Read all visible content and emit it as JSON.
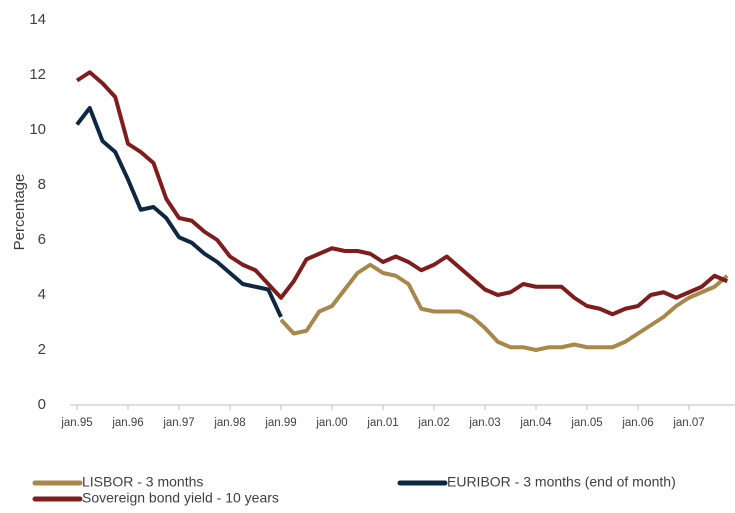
{
  "chart_data": {
    "type": "line",
    "y_label": "Percentage",
    "categories": [
      "jan.95",
      null,
      null,
      null,
      "jan.96",
      null,
      null,
      null,
      "jan.97",
      null,
      null,
      null,
      "jan.98",
      null,
      null,
      null,
      "jan.99",
      null,
      null,
      null,
      "jan.00",
      null,
      null,
      null,
      "jan.01",
      null,
      null,
      null,
      "jan.02",
      null,
      null,
      null,
      "jan.03",
      null,
      null,
      null,
      "jan.04",
      null,
      null,
      null,
      "jan.05",
      null,
      null,
      null,
      "jan.06",
      null,
      null,
      null,
      "jan.07",
      null,
      null,
      null
    ],
    "series": [
      {
        "name": "LISBOR - 3 months",
        "color": "#a8884a",
        "values": [
          null,
          null,
          null,
          null,
          null,
          null,
          null,
          null,
          null,
          null,
          null,
          null,
          null,
          null,
          null,
          null,
          3.1,
          2.6,
          2.7,
          3.4,
          3.6,
          4.2,
          4.8,
          5.1,
          4.8,
          4.7,
          4.4,
          3.5,
          3.4,
          3.4,
          3.4,
          3.2,
          2.8,
          2.3,
          2.1,
          2.1,
          2.0,
          2.1,
          2.1,
          2.2,
          2.1,
          2.1,
          2.1,
          2.3,
          2.6,
          2.9,
          3.2,
          3.6,
          3.9,
          4.1,
          4.3,
          4.7
        ]
      },
      {
        "name": "EURIBOR - 3 months (end of month)",
        "color": "#0e2841",
        "values": [
          10.2,
          10.8,
          9.6,
          9.2,
          8.2,
          7.1,
          7.2,
          6.8,
          6.1,
          5.9,
          5.5,
          5.2,
          4.8,
          4.4,
          4.3,
          4.2,
          3.2,
          null,
          null,
          null,
          null,
          null,
          null,
          null,
          null,
          null,
          null,
          null,
          null,
          null,
          null,
          null,
          null,
          null,
          null,
          null,
          null,
          null,
          null,
          null,
          null,
          null,
          null,
          null,
          null,
          null,
          null,
          null,
          null,
          null,
          null,
          null
        ]
      },
      {
        "name": "Sovereign bond yield - 10 years",
        "color": "#7f1d1d",
        "values": [
          11.8,
          12.1,
          11.7,
          11.2,
          9.5,
          9.2,
          8.8,
          7.5,
          6.8,
          6.7,
          6.3,
          6.0,
          5.4,
          5.1,
          4.9,
          4.4,
          3.9,
          4.5,
          5.3,
          5.5,
          5.7,
          5.6,
          5.6,
          5.5,
          5.2,
          5.4,
          5.2,
          4.9,
          5.1,
          5.4,
          5.0,
          4.6,
          4.2,
          4.0,
          4.1,
          4.4,
          4.3,
          4.3,
          4.3,
          3.9,
          3.6,
          3.5,
          3.3,
          3.5,
          3.6,
          4.0,
          4.1,
          3.9,
          4.1,
          4.3,
          4.7,
          4.5
        ]
      }
    ],
    "ylim": [
      0,
      14
    ],
    "yticks": [
      0,
      2,
      4,
      6,
      8,
      10,
      12,
      14
    ],
    "grid": false
  }
}
